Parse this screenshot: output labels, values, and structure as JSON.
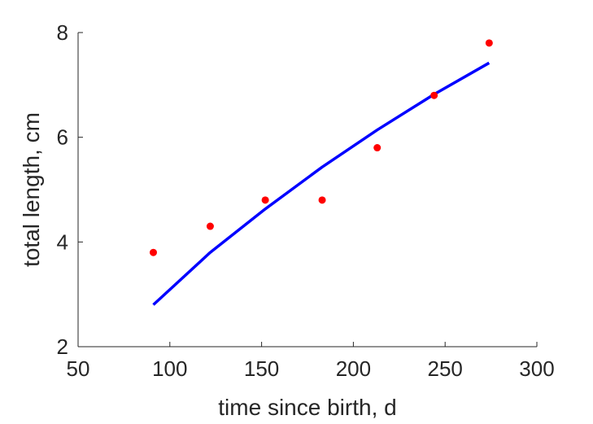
{
  "chart_data": {
    "type": "scatter",
    "title": "",
    "xlabel": "time since birth, d",
    "ylabel": "total length, cm",
    "xlim": [
      50,
      300
    ],
    "ylim": [
      2,
      8
    ],
    "xticks": [
      50,
      100,
      150,
      200,
      250,
      300
    ],
    "yticks": [
      2,
      4,
      6,
      8
    ],
    "grid": false,
    "box": false,
    "series": [
      {
        "kind": "points",
        "color": "#ff0000",
        "x": [
          91,
          122,
          152,
          183,
          213,
          244,
          274
        ],
        "y": [
          3.8,
          4.3,
          4.8,
          4.8,
          5.8,
          6.8,
          7.8
        ]
      },
      {
        "kind": "line",
        "color": "#0000ff",
        "x": [
          91,
          122,
          152,
          183,
          213,
          244,
          274
        ],
        "y": [
          2.8,
          3.8,
          4.63,
          5.43,
          6.14,
          6.82,
          7.42
        ]
      }
    ]
  }
}
